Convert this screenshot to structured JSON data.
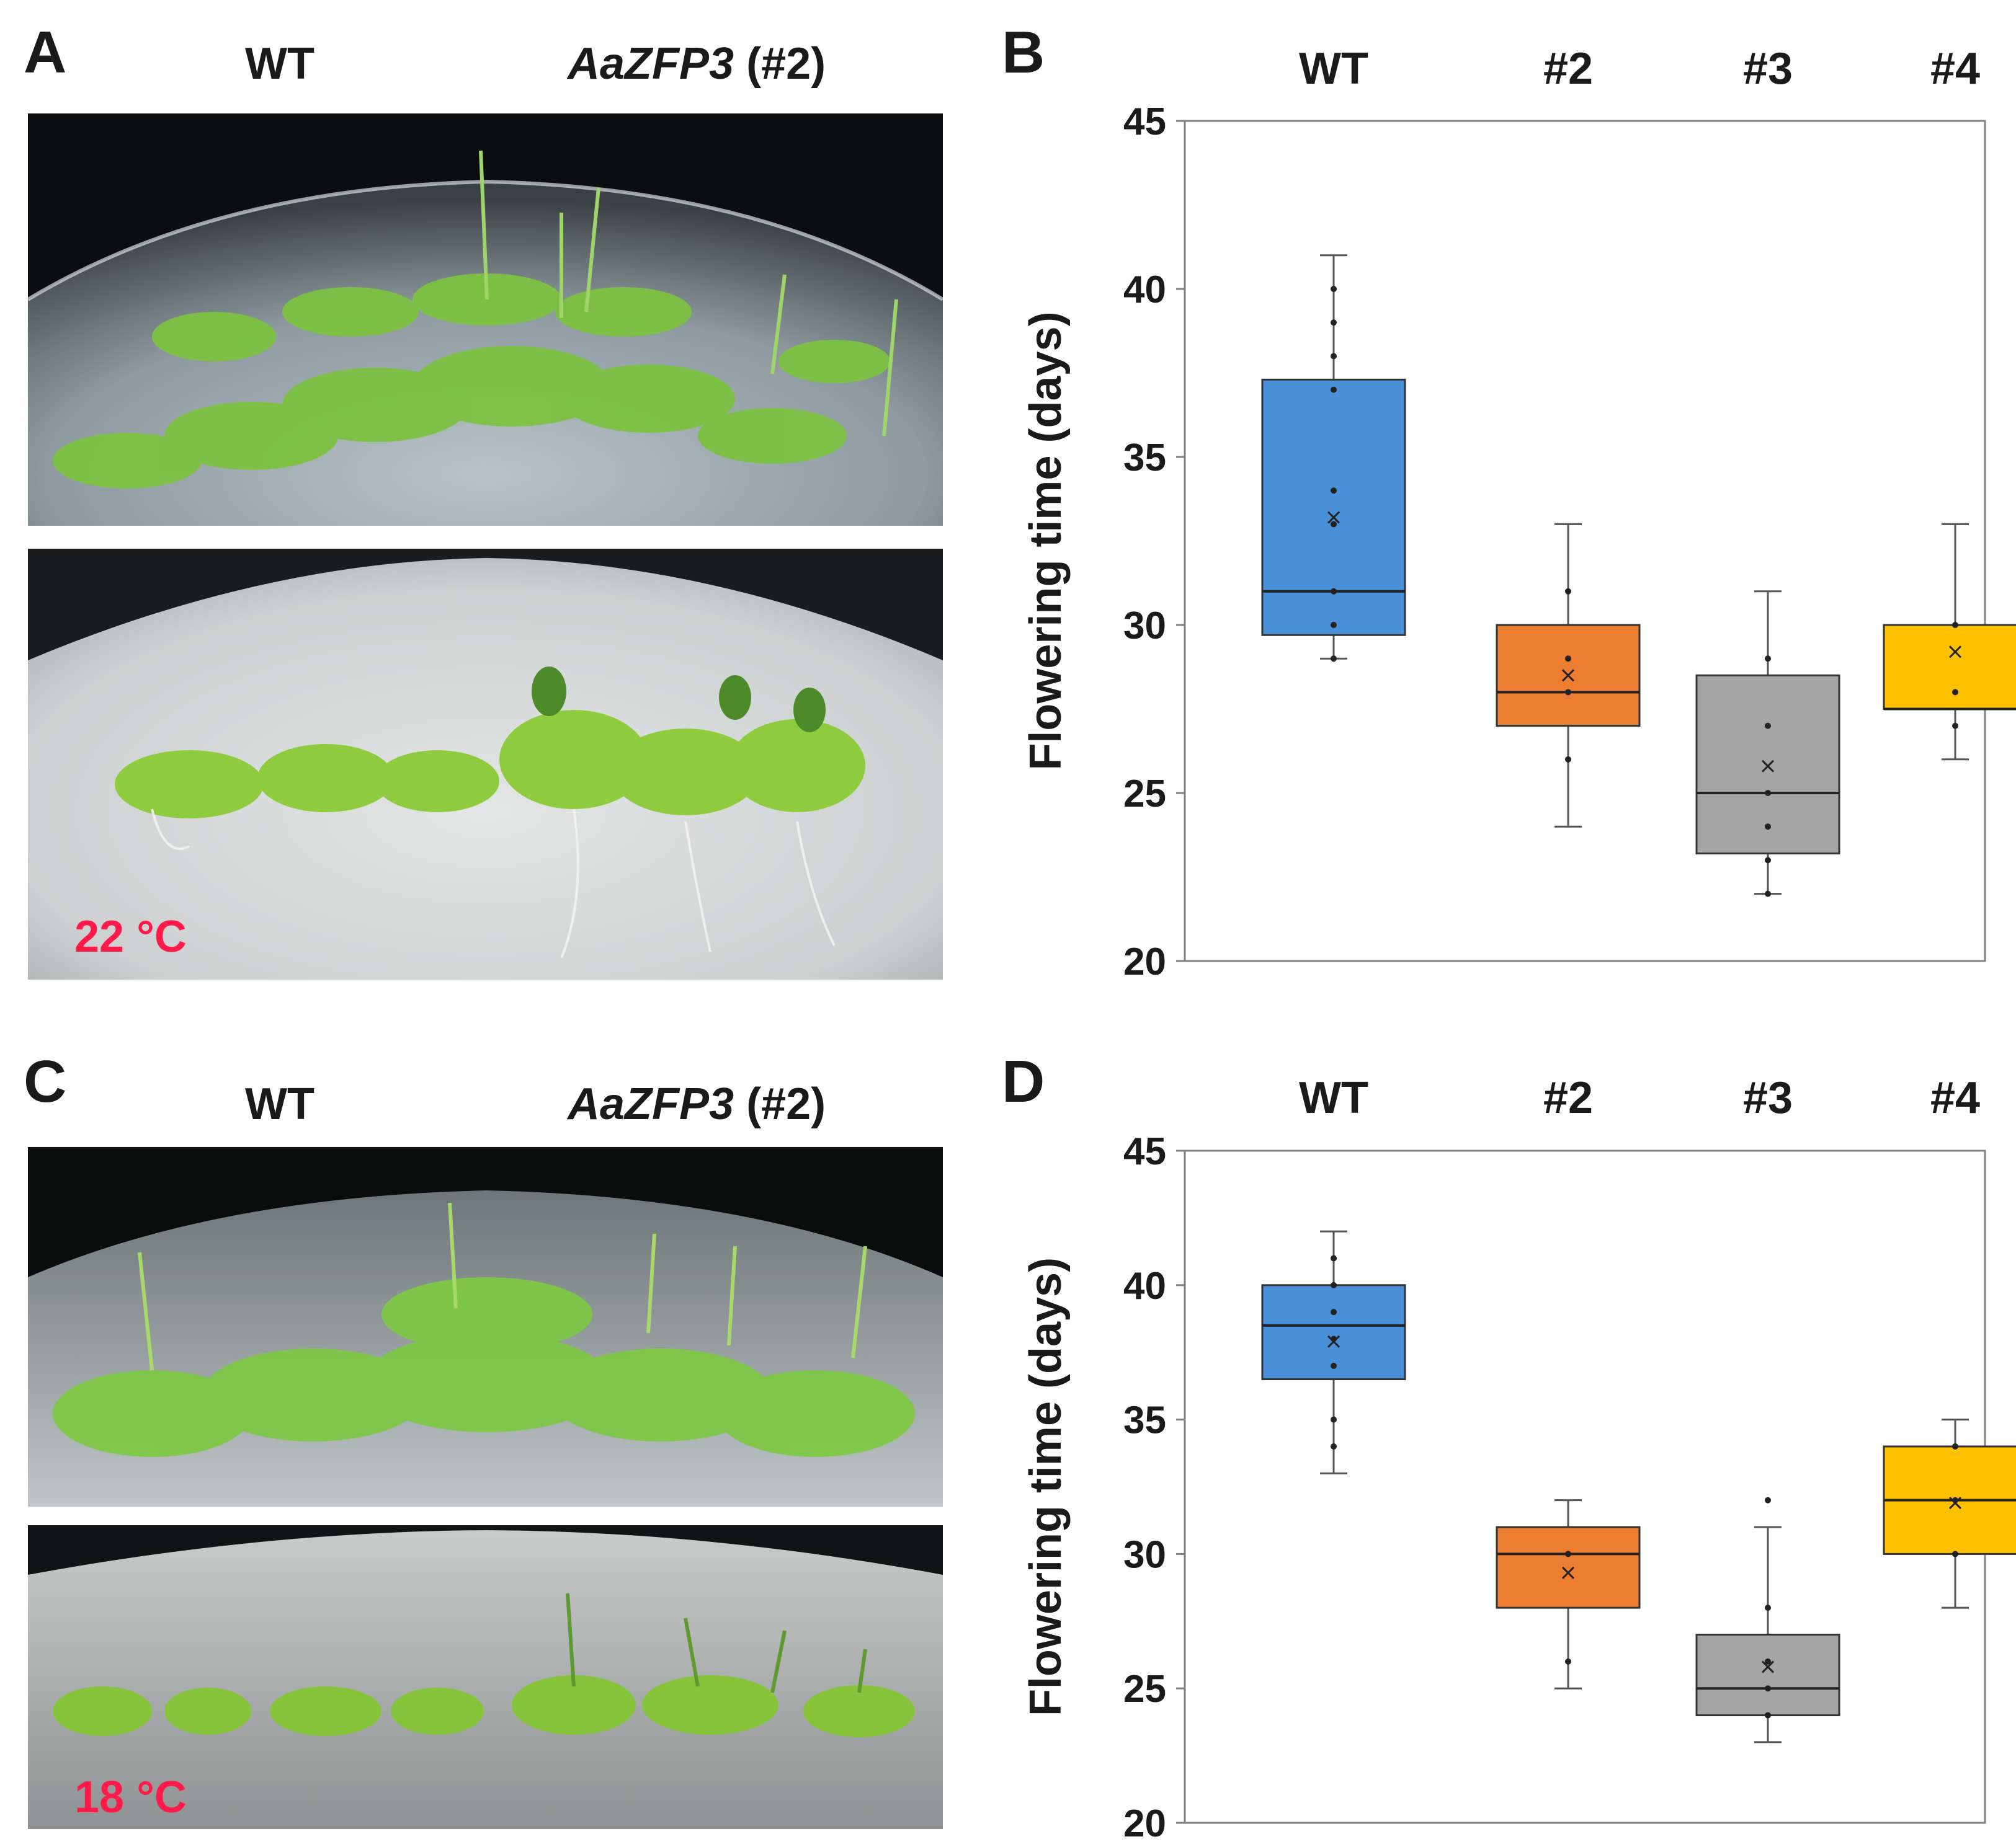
{
  "panels": {
    "A": {
      "letter": "A",
      "label_wt": "WT",
      "label_mutant_gene": "AaZFP3",
      "label_mutant_line": "(#2)",
      "temperature": "22 °C"
    },
    "C": {
      "letter": "C",
      "label_wt": "WT",
      "label_mutant_gene": "AaZFP3",
      "label_mutant_line": "(#2)",
      "temperature": "18 °C"
    }
  },
  "colors": {
    "wt": "#4a90d9",
    "line2": "#ed7d31",
    "line3": "#a5a5a5",
    "line4": "#ffc000",
    "temp_label": "#ff1a4a"
  },
  "chart_data": [
    {
      "id": "B",
      "panel_letter": "B",
      "type": "box",
      "title": "",
      "ylabel": "Flowering time (days)",
      "ylim": [
        20,
        45
      ],
      "yticks": [
        20,
        25,
        30,
        35,
        40,
        45
      ],
      "categories": [
        "WT",
        "#2",
        "#3",
        "#4"
      ],
      "series": [
        {
          "name": "WT",
          "min": 29,
          "q1": 29.7,
          "median": 31,
          "q3": 37.3,
          "max": 41,
          "mean": 33.2,
          "points": [
            29,
            30,
            31,
            33,
            34,
            37,
            38,
            39,
            40
          ]
        },
        {
          "name": "#2",
          "min": 24,
          "q1": 27,
          "median": 28,
          "q3": 30,
          "max": 33,
          "mean": 28.5,
          "points": [
            26,
            28,
            29,
            31
          ]
        },
        {
          "name": "#3",
          "min": 22,
          "q1": 23.2,
          "median": 25,
          "q3": 28.5,
          "max": 31,
          "mean": 25.8,
          "points": [
            22,
            23,
            24,
            25,
            27,
            29
          ]
        },
        {
          "name": "#4",
          "min": 26,
          "q1": 27.5,
          "median": 27.5,
          "q3": 30,
          "max": 33,
          "mean": 29.2,
          "points": [
            27,
            28,
            30
          ]
        }
      ]
    },
    {
      "id": "D",
      "panel_letter": "D",
      "type": "box",
      "title": "",
      "ylabel": "Flowering time (days)",
      "ylim": [
        20,
        45
      ],
      "yticks": [
        20,
        25,
        30,
        35,
        40,
        45
      ],
      "categories": [
        "WT",
        "#2",
        "#3",
        "#4"
      ],
      "series": [
        {
          "name": "WT",
          "min": 33,
          "q1": 36.5,
          "median": 38.5,
          "q3": 40,
          "max": 42,
          "mean": 37.9,
          "points": [
            34,
            35,
            37,
            38,
            39,
            40,
            41
          ]
        },
        {
          "name": "#2",
          "min": 25,
          "q1": 28,
          "median": 30,
          "q3": 31,
          "max": 32,
          "mean": 29.3,
          "points": [
            26,
            30
          ]
        },
        {
          "name": "#3",
          "min": 23,
          "q1": 24,
          "median": 25,
          "q3": 27,
          "max": 31,
          "mean": 25.8,
          "points": [
            24,
            25,
            26,
            28,
            32
          ]
        },
        {
          "name": "#4",
          "min": 28,
          "q1": 30,
          "median": 32,
          "q3": 34,
          "max": 35,
          "mean": 31.9,
          "points": [
            30,
            32,
            34
          ]
        }
      ]
    }
  ]
}
